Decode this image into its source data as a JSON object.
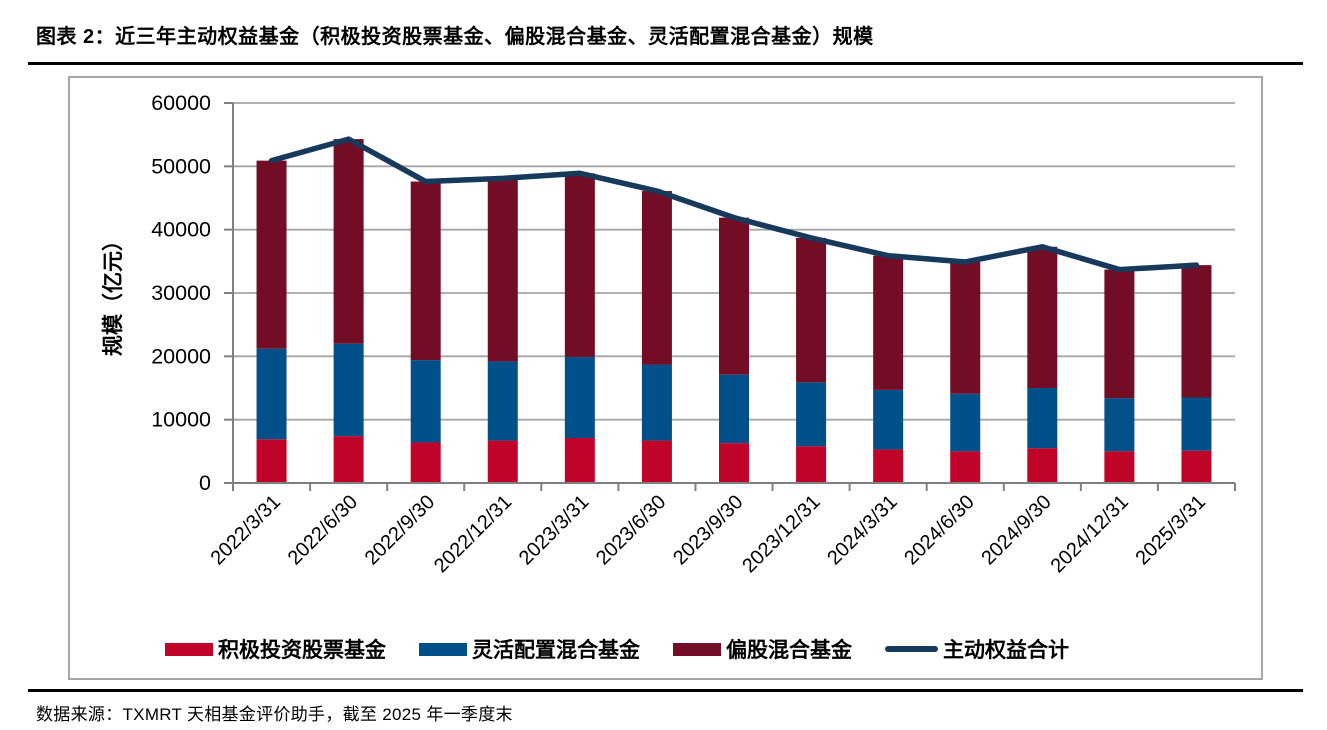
{
  "page": {
    "title": "图表  2：近三年主动权益基金（积极投资股票基金、偏股混合基金、灵活配置混合基金）规模",
    "source_note": "数据来源：TXMRT 天相基金评价助手，截至 2025 年一季度末"
  },
  "chart_data": {
    "type": "bar",
    "subtype": "stacked-bars-with-total-line",
    "title": "",
    "xlabel": "",
    "ylabel": "规模（亿元）",
    "ylim": [
      0,
      60000
    ],
    "ytick_step": 10000,
    "ytick_labels": [
      "0",
      "10000",
      "20000",
      "30000",
      "40000",
      "50000",
      "60000"
    ],
    "grid": true,
    "legend_position": "bottom",
    "categories": [
      "2022/3/31",
      "2022/6/30",
      "2022/9/30",
      "2022/12/31",
      "2023/3/31",
      "2023/6/30",
      "2023/9/30",
      "2023/12/31",
      "2024/3/31",
      "2024/6/30",
      "2024/9/30",
      "2024/12/31",
      "2025/3/31"
    ],
    "series": [
      {
        "name": "积极投资股票基金",
        "type": "bar",
        "color": "#c00328",
        "values": [
          6900,
          7400,
          6400,
          6700,
          7100,
          6700,
          6300,
          5800,
          5300,
          5000,
          5500,
          5000,
          5100
        ]
      },
      {
        "name": "灵活配置混合基金",
        "type": "bar",
        "color": "#015089",
        "values": [
          14300,
          14600,
          13000,
          12500,
          12800,
          12000,
          10800,
          10100,
          9400,
          9100,
          9500,
          8400,
          8400
        ]
      },
      {
        "name": "偏股混合基金",
        "type": "bar",
        "color": "#730d25",
        "values": [
          29700,
          32300,
          28200,
          28900,
          29000,
          27400,
          24800,
          22800,
          21200,
          20800,
          22300,
          20300,
          20900
        ]
      },
      {
        "name": "主动权益合计",
        "type": "line",
        "color": "#17395b",
        "values": [
          50900,
          54300,
          47600,
          48100,
          48900,
          46100,
          41900,
          38700,
          35900,
          34900,
          37300,
          33700,
          34400
        ]
      }
    ],
    "colors": {
      "axis": "#808080",
      "gridline": "#a6a6a6",
      "frame_border": "#a6a6a6",
      "divider_rule": "#000000"
    }
  }
}
